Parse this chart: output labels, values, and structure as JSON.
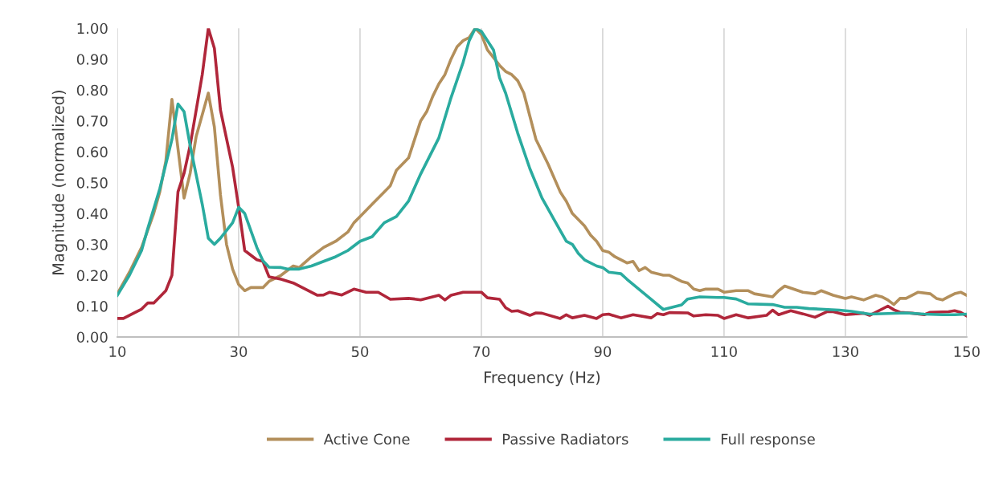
{
  "chart_data": {
    "type": "line",
    "xlabel": "Frequency (Hz)",
    "ylabel": "Magnitude (normalized)",
    "xlim": [
      10,
      150
    ],
    "xticks": [
      10,
      30,
      50,
      70,
      90,
      110,
      130,
      150
    ],
    "ylim": [
      0,
      1
    ],
    "yticks": [
      {
        "value": 0,
        "label": "0.00"
      },
      {
        "value": 0.1,
        "label": "0.10"
      },
      {
        "value": 0.2,
        "label": "0.20"
      },
      {
        "value": 0.3,
        "label": "0.30"
      },
      {
        "value": 0.4,
        "label": "0.40"
      },
      {
        "value": 0.5,
        "label": "0.50"
      },
      {
        "value": 0.6,
        "label": "0.60"
      },
      {
        "value": 0.7,
        "label": "0.70"
      },
      {
        "value": 0.8,
        "label": "0.80"
      },
      {
        "value": 0.9,
        "label": "0.90"
      },
      {
        "value": 1,
        "label": "1.00"
      }
    ],
    "grid": "x",
    "legend": "bottom",
    "marker": "none",
    "line_style": "solid",
    "series": [
      {
        "name": "Active Cone",
        "color": "#b38f5b",
        "x": [
          10,
          12,
          14,
          16,
          17,
          18,
          19,
          21,
          22,
          23,
          24,
          25,
          26,
          27,
          28,
          29,
          30,
          31,
          32,
          34,
          35,
          37,
          39,
          40,
          42,
          44,
          46,
          48,
          49,
          50,
          52,
          54,
          55,
          56,
          58,
          60,
          61,
          62,
          63,
          64,
          65,
          66,
          67,
          68,
          69,
          70,
          71,
          73,
          74,
          75,
          76,
          77,
          79,
          81,
          83,
          84,
          85,
          86,
          87,
          88,
          89,
          90,
          91,
          92,
          94,
          95,
          96,
          97,
          98,
          100,
          101,
          103,
          104,
          105,
          106,
          107,
          109,
          110,
          112,
          114,
          115,
          118,
          119,
          120,
          123,
          125,
          126,
          128,
          130,
          131,
          133,
          135,
          136,
          137,
          138,
          139,
          140,
          142,
          144,
          145,
          146,
          147,
          148,
          149,
          150
        ],
        "values": [
          0.14,
          0.21,
          0.29,
          0.4,
          0.47,
          0.57,
          0.77,
          0.45,
          0.53,
          0.65,
          0.72,
          0.79,
          0.68,
          0.46,
          0.3,
          0.22,
          0.17,
          0.15,
          0.16,
          0.16,
          0.18,
          0.2,
          0.23,
          0.225,
          0.26,
          0.29,
          0.31,
          0.34,
          0.37,
          0.39,
          0.43,
          0.47,
          0.49,
          0.54,
          0.58,
          0.7,
          0.73,
          0.78,
          0.82,
          0.85,
          0.9,
          0.94,
          0.96,
          0.97,
          1.0,
          0.98,
          0.93,
          0.88,
          0.86,
          0.85,
          0.83,
          0.79,
          0.64,
          0.56,
          0.47,
          0.44,
          0.4,
          0.38,
          0.36,
          0.33,
          0.31,
          0.28,
          0.275,
          0.26,
          0.24,
          0.245,
          0.215,
          0.225,
          0.21,
          0.2,
          0.2,
          0.18,
          0.175,
          0.155,
          0.15,
          0.155,
          0.155,
          0.145,
          0.15,
          0.15,
          0.14,
          0.13,
          0.15,
          0.165,
          0.145,
          0.14,
          0.15,
          0.135,
          0.125,
          0.13,
          0.12,
          0.135,
          0.13,
          0.12,
          0.105,
          0.125,
          0.125,
          0.145,
          0.14,
          0.125,
          0.12,
          0.13,
          0.14,
          0.145,
          0.135
        ]
      },
      {
        "name": "Passive Radiators",
        "color": "#b0263a",
        "x": [
          10,
          11,
          13,
          14,
          15,
          16,
          18,
          19,
          20,
          21,
          22,
          24,
          25,
          26,
          27,
          29,
          30,
          31,
          33,
          34,
          35,
          37,
          39,
          41,
          43,
          44,
          45,
          47,
          49,
          51,
          53,
          55,
          58,
          59,
          60,
          63,
          64,
          65,
          67,
          70,
          71,
          73,
          74,
          75,
          76,
          78,
          79,
          80,
          83,
          84,
          85,
          87,
          89,
          90,
          91,
          93,
          95,
          98,
          99,
          100,
          101,
          104,
          105,
          107,
          109,
          110,
          112,
          114,
          117,
          118,
          119,
          121,
          123,
          125,
          127,
          128,
          130,
          133,
          134,
          137,
          138,
          139,
          141,
          143,
          144,
          147,
          148,
          149,
          150
        ],
        "values": [
          0.06,
          0.06,
          0.08,
          0.09,
          0.11,
          0.11,
          0.15,
          0.2,
          0.47,
          0.53,
          0.62,
          0.85,
          1.0,
          0.935,
          0.735,
          0.55,
          0.42,
          0.28,
          0.25,
          0.245,
          0.195,
          0.187,
          0.175,
          0.155,
          0.135,
          0.136,
          0.145,
          0.136,
          0.155,
          0.145,
          0.145,
          0.122,
          0.125,
          0.123,
          0.12,
          0.135,
          0.12,
          0.135,
          0.145,
          0.145,
          0.127,
          0.122,
          0.095,
          0.083,
          0.085,
          0.07,
          0.078,
          0.077,
          0.06,
          0.072,
          0.062,
          0.07,
          0.06,
          0.072,
          0.074,
          0.062,
          0.072,
          0.062,
          0.076,
          0.072,
          0.079,
          0.078,
          0.068,
          0.072,
          0.07,
          0.06,
          0.072,
          0.062,
          0.07,
          0.087,
          0.072,
          0.085,
          0.075,
          0.064,
          0.082,
          0.082,
          0.072,
          0.077,
          0.07,
          0.1,
          0.088,
          0.08,
          0.077,
          0.072,
          0.08,
          0.082,
          0.085,
          0.08,
          0.068
        ]
      },
      {
        "name": "Full response",
        "color": "#2aab9f",
        "x": [
          10,
          12,
          14,
          15,
          17,
          19,
          20,
          21,
          22,
          24,
          25,
          26,
          27,
          29,
          30,
          31,
          33,
          34,
          35,
          37,
          38,
          40,
          42,
          44,
          46,
          48,
          50,
          52,
          54,
          56,
          58,
          60,
          63,
          65,
          67,
          68,
          69,
          70,
          72,
          73,
          74,
          76,
          78,
          80,
          82,
          84,
          85,
          86,
          87,
          89,
          90,
          91,
          93,
          94,
          98,
          100,
          103,
          104,
          106,
          109,
          110,
          112,
          114,
          118,
          120,
          122,
          124,
          129,
          131,
          134,
          137,
          140,
          143,
          146,
          148,
          150
        ],
        "values": [
          0.135,
          0.2,
          0.28,
          0.35,
          0.48,
          0.64,
          0.755,
          0.73,
          0.62,
          0.43,
          0.32,
          0.3,
          0.32,
          0.37,
          0.42,
          0.4,
          0.29,
          0.247,
          0.226,
          0.225,
          0.22,
          0.22,
          0.23,
          0.245,
          0.26,
          0.28,
          0.31,
          0.325,
          0.37,
          0.39,
          0.44,
          0.528,
          0.645,
          0.775,
          0.89,
          0.96,
          1.0,
          0.99,
          0.93,
          0.84,
          0.79,
          0.66,
          0.545,
          0.45,
          0.38,
          0.31,
          0.3,
          0.27,
          0.25,
          0.23,
          0.225,
          0.21,
          0.205,
          0.187,
          0.122,
          0.089,
          0.104,
          0.123,
          0.13,
          0.128,
          0.128,
          0.123,
          0.107,
          0.105,
          0.096,
          0.096,
          0.092,
          0.087,
          0.083,
          0.074,
          0.076,
          0.078,
          0.074,
          0.072,
          0.072,
          0.074
        ]
      }
    ]
  }
}
